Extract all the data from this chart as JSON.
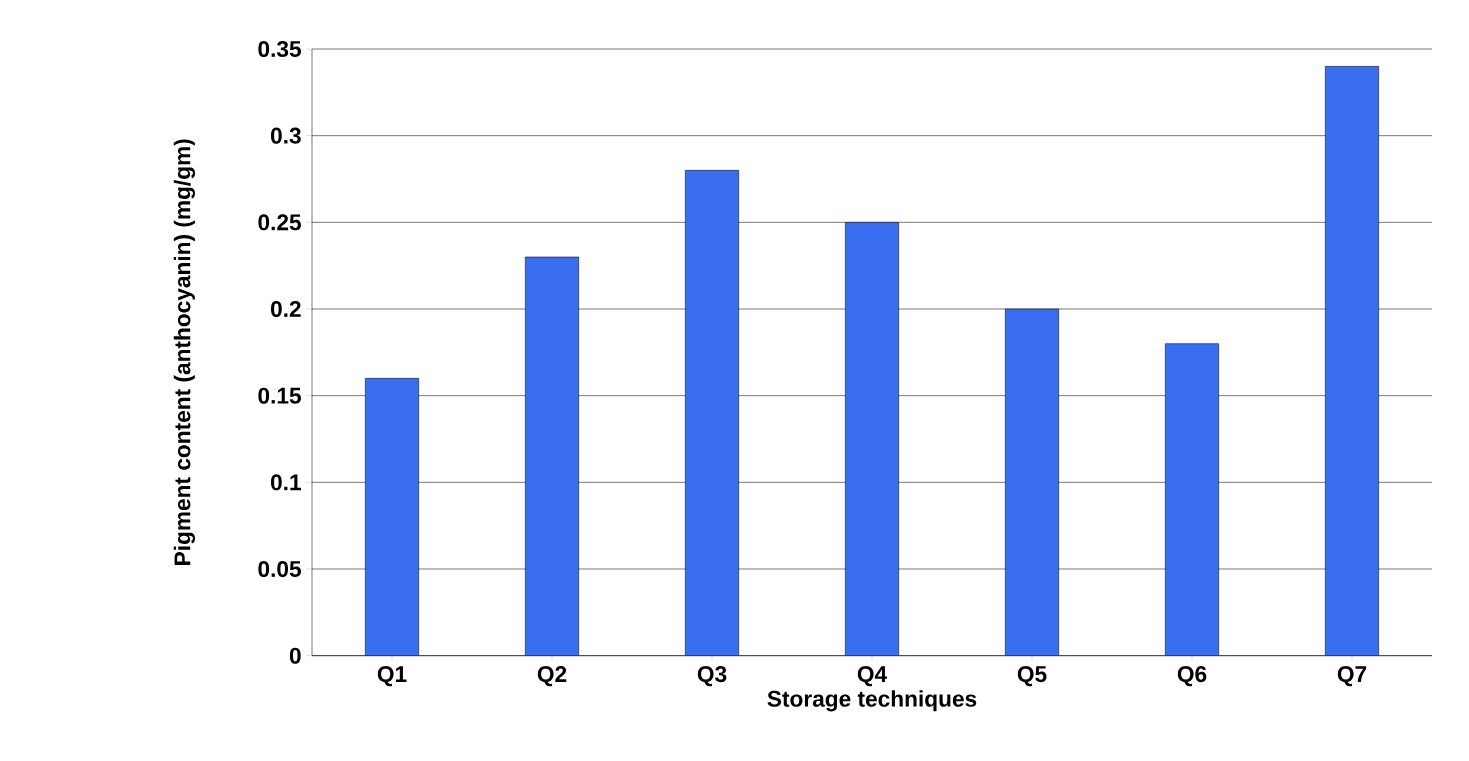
{
  "chart_data": {
    "type": "bar",
    "xlabel": "Storage techniques",
    "ylabel": "Pigment content (anthocyanin) (mg/gm)",
    "categories": [
      "Q1",
      "Q2",
      "Q3",
      "Q4",
      "Q5",
      "Q6",
      "Q7"
    ],
    "values": [
      0.16,
      0.23,
      0.28,
      0.25,
      0.2,
      0.18,
      0.34
    ],
    "color": "#3a6ef0",
    "ylim": [
      0,
      0.35
    ],
    "yticks": [
      0,
      0.05,
      0.1,
      0.15,
      0.2,
      0.25,
      0.3,
      0.35
    ],
    "grid": "y"
  }
}
